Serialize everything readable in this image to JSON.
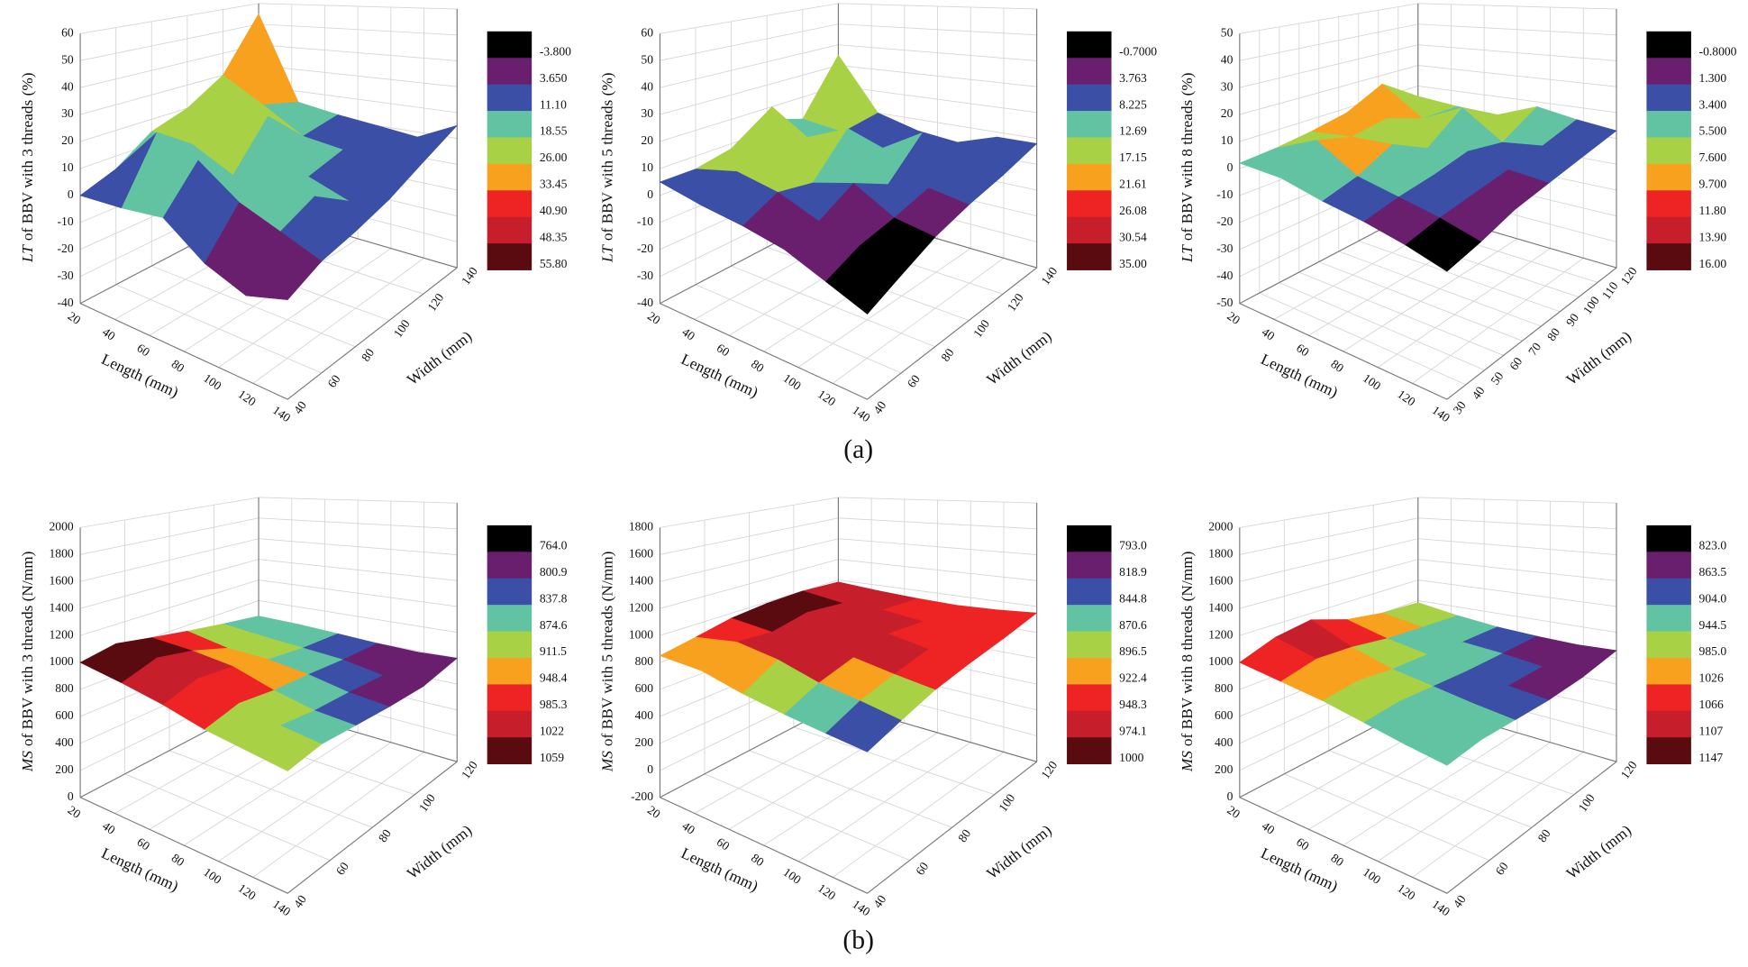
{
  "captions": [
    "(a)",
    "(b)"
  ],
  "chart_data": [
    {
      "type": "surface",
      "zlabel": {
        "symbol": "LT",
        "text": "of BBV with 3 threads (%)"
      },
      "xlabel": "Length (mm)",
      "ylabel": "Width (mm)",
      "xlim": [
        20,
        140
      ],
      "xticks": [
        20,
        40,
        60,
        80,
        100,
        120,
        140
      ],
      "ylim": [
        40,
        140
      ],
      "yticks": [
        40,
        60,
        80,
        100,
        120,
        140
      ],
      "zlim": [
        -40,
        60
      ],
      "zticks": [
        -40,
        -30,
        -20,
        -10,
        0,
        10,
        20,
        30,
        40,
        50,
        60
      ],
      "x": [
        20,
        44,
        68,
        92,
        116,
        140
      ],
      "y": [
        40,
        60,
        80,
        100,
        120,
        140
      ],
      "z": [
        [
          0,
          5,
          15,
          20,
          30,
          55
        ],
        [
          2,
          25,
          15,
          30,
          20,
          15
        ],
        [
          5,
          20,
          8,
          25,
          10,
          12
        ],
        [
          -5,
          10,
          30,
          5,
          8,
          10
        ],
        [
          -10,
          5,
          10,
          0,
          5,
          8
        ],
        [
          -5,
          0,
          2,
          5,
          10,
          15
        ]
      ],
      "levels": [
        {
          "value": -3.8,
          "label": "-3.800"
        },
        {
          "value": 3.65,
          "label": "3.650"
        },
        {
          "value": 11.1,
          "label": "11.10"
        },
        {
          "value": 18.55,
          "label": "18.55"
        },
        {
          "value": 26,
          "label": "26.00"
        },
        {
          "value": 33.45,
          "label": "33.45"
        },
        {
          "value": 40.9,
          "label": "40.90"
        },
        {
          "value": 48.35,
          "label": "48.35"
        },
        {
          "value": 55.8,
          "label": "55.80"
        }
      ],
      "colors": [
        "#000000",
        "#6a1f6e",
        "#3a4fa5",
        "#62c3a2",
        "#a9d145",
        "#f7a11f",
        "#ee2424",
        "#c61e2b",
        "#5a0b10"
      ]
    },
    {
      "type": "surface",
      "zlabel": {
        "symbol": "LT",
        "text": "of BBV with 5 threads (%)"
      },
      "xlabel": "Length (mm)",
      "ylabel": "Width (mm)",
      "xlim": [
        20,
        140
      ],
      "xticks": [
        20,
        40,
        60,
        80,
        100,
        120,
        140
      ],
      "ylim": [
        40,
        140
      ],
      "yticks": [
        40,
        60,
        80,
        100,
        120,
        140
      ],
      "zlim": [
        -40,
        60
      ],
      "zticks": [
        -40,
        -30,
        -20,
        -10,
        0,
        10,
        20,
        30,
        40,
        50,
        60
      ],
      "x": [
        20,
        44,
        68,
        92,
        116,
        140
      ],
      "y": [
        40,
        60,
        80,
        100,
        120,
        140
      ],
      "z": [
        [
          5,
          5,
          8,
          15,
          10,
          35
        ],
        [
          3,
          10,
          30,
          12,
          8,
          10
        ],
        [
          2,
          8,
          5,
          20,
          5,
          5
        ],
        [
          0,
          3,
          10,
          2,
          15,
          3
        ],
        [
          -5,
          0,
          2,
          5,
          3,
          8
        ],
        [
          -10,
          -5,
          0,
          3,
          5,
          8
        ]
      ],
      "levels": [
        {
          "value": -0.7,
          "label": "-0.7000"
        },
        {
          "value": 3.763,
          "label": "3.763"
        },
        {
          "value": 8.225,
          "label": "8.225"
        },
        12.69,
        17.15,
        21.61,
        26.08,
        30.54,
        {
          "value": 35,
          "label": "35.00"
        }
      ],
      "colors": [
        "#000000",
        "#6a1f6e",
        "#3a4fa5",
        "#62c3a2",
        "#a9d145",
        "#f7a11f",
        "#ee2424",
        "#c61e2b",
        "#5a0b10"
      ]
    },
    {
      "type": "surface",
      "zlabel": {
        "symbol": "LT",
        "text": "of BBV with 8 threads (%)"
      },
      "xlabel": "Length (mm)",
      "ylabel": "Width (mm)",
      "xlim": [
        20,
        140
      ],
      "xticks": [
        20,
        40,
        60,
        80,
        100,
        120,
        140
      ],
      "ylim": [
        30,
        120
      ],
      "yticks": [
        30,
        40,
        50,
        60,
        70,
        80,
        90,
        100,
        110,
        120
      ],
      "zlim": [
        -50,
        50
      ],
      "zticks": [
        -50,
        -40,
        -30,
        -20,
        -10,
        0,
        10,
        20,
        30,
        40,
        50
      ],
      "x": [
        20,
        44,
        68,
        92,
        116,
        140
      ],
      "y": [
        30,
        48,
        66,
        84,
        102,
        120
      ],
      "z": [
        [
          2,
          3,
          5,
          8,
          16,
          5
        ],
        [
          3,
          12,
          8,
          10,
          4,
          3
        ],
        [
          1,
          4,
          10,
          2,
          12,
          2
        ],
        [
          0,
          2,
          3,
          5,
          1,
          8
        ],
        [
          -2,
          0,
          1,
          2,
          3,
          5
        ],
        [
          -5,
          -3,
          0,
          1,
          2,
          3
        ]
      ],
      "levels": [
        {
          "value": -0.8,
          "label": "-0.8000"
        },
        {
          "value": 1.3,
          "label": "1.300"
        },
        {
          "value": 3.4,
          "label": "3.400"
        },
        {
          "value": 5.5,
          "label": "5.500"
        },
        {
          "value": 7.6,
          "label": "7.600"
        },
        {
          "value": 9.7,
          "label": "9.700"
        },
        {
          "value": 11.8,
          "label": "11.80"
        },
        {
          "value": 13.9,
          "label": "13.90"
        },
        {
          "value": 16,
          "label": "16.00"
        }
      ],
      "colors": [
        "#000000",
        "#6a1f6e",
        "#3a4fa5",
        "#62c3a2",
        "#a9d145",
        "#f7a11f",
        "#ee2424",
        "#c61e2b",
        "#5a0b10"
      ]
    },
    {
      "type": "surface",
      "zlabel": {
        "symbol": "MS",
        "text": "of BBV with 3 threads (N/mm)"
      },
      "xlabel": "Length (mm)",
      "ylabel": "Width (mm)",
      "xlim": [
        20,
        140
      ],
      "xticks": [
        20,
        40,
        60,
        80,
        100,
        120,
        140
      ],
      "ylim": [
        40,
        120
      ],
      "yticks": [
        40,
        60,
        80,
        100,
        120
      ],
      "zlim": [
        0,
        2000
      ],
      "zticks": [
        0,
        200,
        400,
        600,
        800,
        1000,
        1200,
        1400,
        1600,
        1800,
        2000
      ],
      "x": [
        20,
        44,
        68,
        92,
        116,
        140
      ],
      "y": [
        40,
        56,
        72,
        88,
        104,
        120
      ],
      "z": [
        [
          1000,
          1050,
          1000,
          950,
          900,
          850
        ],
        [
          980,
          1059,
          1000,
          900,
          870,
          840
        ],
        [
          950,
          1020,
          980,
          900,
          850,
          820
        ],
        [
          900,
          950,
          900,
          870,
          830,
          800
        ],
        [
          880,
          900,
          850,
          820,
          780,
          790
        ],
        [
          860,
          880,
          840,
          800,
          770,
          800
        ]
      ],
      "levels": [
        {
          "value": 764,
          "label": "764.0"
        },
        {
          "value": 800.9,
          "label": "800.9"
        },
        {
          "value": 837.8,
          "label": "837.8"
        },
        {
          "value": 874.6,
          "label": "874.6"
        },
        {
          "value": 911.5,
          "label": "911.5"
        },
        {
          "value": 948.4,
          "label": "948.4"
        },
        {
          "value": 985.3,
          "label": "985.3"
        },
        1022,
        1059
      ],
      "colors": [
        "#000000",
        "#6a1f6e",
        "#3a4fa5",
        "#62c3a2",
        "#a9d145",
        "#f7a11f",
        "#ee2424",
        "#c61e2b",
        "#5a0b10"
      ]
    },
    {
      "type": "surface",
      "zlabel": {
        "symbol": "MS",
        "text": "of BBV with 5 threads (N/mm)"
      },
      "xlabel": "Length (mm)",
      "ylabel": "Width (mm)",
      "xlim": [
        20,
        140
      ],
      "xticks": [
        20,
        40,
        60,
        80,
        100,
        120,
        140
      ],
      "ylim": [
        40,
        120
      ],
      "yticks": [
        40,
        60,
        80,
        100,
        120
      ],
      "zlim": [
        -200,
        1800
      ],
      "zticks": [
        -200,
        0,
        200,
        400,
        600,
        800,
        1000,
        1200,
        1400,
        1600,
        1800
      ],
      "x": [
        20,
        44,
        68,
        92,
        116,
        140
      ],
      "y": [
        40,
        56,
        72,
        88,
        104,
        120
      ],
      "z": [
        [
          850,
          900,
          960,
          990,
          1000,
          980
        ],
        [
          870,
          980,
          950,
          1000,
          960,
          950
        ],
        [
          830,
          960,
          990,
          940,
          970,
          930
        ],
        [
          810,
          900,
          950,
          990,
          940,
          920
        ],
        [
          800,
          880,
          920,
          950,
          900,
          930
        ],
        [
          795,
          850,
          900,
          920,
          930,
          950
        ]
      ],
      "levels": [
        {
          "value": 793,
          "label": "793.0"
        },
        {
          "value": 818.9,
          "label": "818.9"
        },
        {
          "value": 844.8,
          "label": "844.8"
        },
        {
          "value": 870.6,
          "label": "870.6"
        },
        {
          "value": 896.5,
          "label": "896.5"
        },
        {
          "value": 922.4,
          "label": "922.4"
        },
        {
          "value": 948.3,
          "label": "948.3"
        },
        {
          "value": 974.1,
          "label": "974.1"
        },
        1000
      ],
      "colors": [
        "#000000",
        "#6a1f6e",
        "#3a4fa5",
        "#62c3a2",
        "#a9d145",
        "#f7a11f",
        "#ee2424",
        "#c61e2b",
        "#5a0b10"
      ]
    },
    {
      "type": "surface",
      "zlabel": {
        "symbol": "MS",
        "text": "of BBV with 8 threads (N/mm)"
      },
      "xlabel": "Length (mm)",
      "ylabel": "Width (mm)",
      "xlim": [
        20,
        140
      ],
      "xticks": [
        20,
        40,
        60,
        80,
        100,
        120,
        140
      ],
      "ylim": [
        40,
        120
      ],
      "yticks": [
        40,
        60,
        80,
        100,
        120
      ],
      "zlim": [
        0,
        2000
      ],
      "zticks": [
        0,
        200,
        400,
        600,
        800,
        1000,
        1200,
        1400,
        1600,
        1800,
        2000
      ],
      "x": [
        20,
        44,
        68,
        92,
        116,
        140
      ],
      "y": [
        40,
        56,
        72,
        88,
        104,
        120
      ],
      "z": [
        [
          1000,
          1100,
          1147,
          1050,
          1000,
          980
        ],
        [
          990,
          1050,
          1030,
          980,
          950,
          920
        ],
        [
          980,
          1000,
          960,
          940,
          900,
          880
        ],
        [
          950,
          960,
          930,
          900,
          880,
          860
        ],
        [
          920,
          940,
          900,
          870,
          850,
          850
        ],
        [
          900,
          910,
          880,
          850,
          840,
          860
        ]
      ],
      "levels": [
        {
          "value": 823,
          "label": "823.0"
        },
        {
          "value": 863.5,
          "label": "863.5"
        },
        {
          "value": 904,
          "label": "904.0"
        },
        {
          "value": 944.5,
          "label": "944.5"
        },
        {
          "value": 985,
          "label": "985.0"
        },
        1026,
        1066,
        1107,
        1147
      ],
      "colors": [
        "#000000",
        "#6a1f6e",
        "#3a4fa5",
        "#62c3a2",
        "#a9d145",
        "#f7a11f",
        "#ee2424",
        "#c61e2b",
        "#5a0b10"
      ]
    }
  ]
}
